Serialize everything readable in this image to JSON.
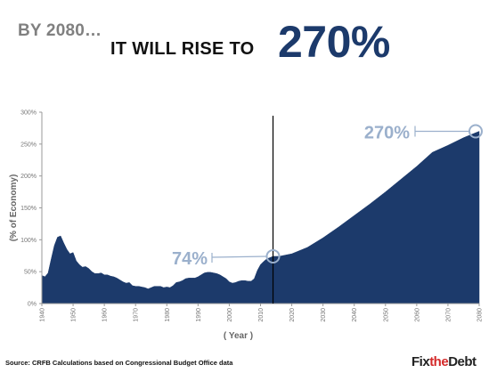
{
  "header": {
    "kicker": "BY 2080…",
    "headline": "IT WILL RISE TO",
    "big_value": "270%"
  },
  "footer": {
    "source": "Source: CRFB Calculations based on Congressional Budget Office data",
    "logo_part1": "Fix",
    "logo_part2": "the",
    "logo_part3": "Debt"
  },
  "colors": {
    "area": "#1c3a6b",
    "callout": "#9bb0cc",
    "axis_text": "#777777",
    "accent": "#d42a2a"
  },
  "chart_data": {
    "type": "area",
    "title": "",
    "xlabel": "( Year )",
    "ylabel": "(% of Economy)",
    "xlim": [
      1940,
      2080
    ],
    "ylim": [
      0,
      300
    ],
    "yticks": [
      0,
      50,
      100,
      150,
      200,
      250,
      300
    ],
    "ytick_labels": [
      "0%",
      "50%",
      "100%",
      "150%",
      "200%",
      "250%",
      "300%"
    ],
    "xticks": [
      1940,
      1950,
      1960,
      1970,
      1980,
      1990,
      2000,
      2010,
      2020,
      2030,
      2040,
      2050,
      2060,
      2070,
      2080
    ],
    "xtick_labels": [
      "1940",
      "1950",
      "1960",
      "1970",
      "1980",
      "1990",
      "2000",
      "2010",
      "2020",
      "2030",
      "2040",
      "2050",
      "2060",
      "2070",
      "2080"
    ],
    "grid": false,
    "divider_year": 2014,
    "series": [
      {
        "x": [
          1940,
          1941,
          1942,
          1943,
          1944,
          1945,
          1946,
          1947,
          1948,
          1949,
          1950,
          1951,
          1952,
          1953,
          1954,
          1955,
          1956,
          1957,
          1958,
          1959,
          1960,
          1961,
          1962,
          1963,
          1964,
          1965,
          1966,
          1967,
          1968,
          1969,
          1970,
          1971,
          1972,
          1973,
          1974,
          1975,
          1976,
          1977,
          1978,
          1979,
          1980,
          1981,
          1982,
          1983,
          1984,
          1985,
          1986,
          1987,
          1988,
          1989,
          1990,
          1991,
          1992,
          1993,
          1994,
          1995,
          1996,
          1997,
          1998,
          1999,
          2000,
          2001,
          2002,
          2003,
          2004,
          2005,
          2006,
          2007,
          2008,
          2009,
          2010,
          2011,
          2012,
          2013,
          2014,
          2016,
          2018,
          2020,
          2022,
          2025,
          2030,
          2035,
          2040,
          2045,
          2050,
          2055,
          2060,
          2065,
          2070,
          2075,
          2080
        ],
        "values": [
          44,
          42,
          48,
          70,
          91,
          104,
          106,
          95,
          85,
          78,
          80,
          67,
          61,
          57,
          58,
          55,
          50,
          47,
          47,
          48,
          45,
          45,
          43,
          42,
          40,
          37,
          34,
          32,
          33,
          28,
          27,
          27,
          26,
          25,
          23,
          25,
          27,
          27,
          27,
          25,
          26,
          25,
          28,
          33,
          34,
          36,
          39,
          40,
          40,
          40,
          42,
          45,
          48,
          49,
          49,
          48,
          47,
          45,
          42,
          39,
          34,
          32,
          33,
          35,
          36,
          36,
          35,
          35,
          39,
          52,
          61,
          66,
          70,
          72,
          74,
          74,
          76,
          78,
          82,
          88,
          103,
          120,
          138,
          156,
          175,
          195,
          215,
          237,
          248,
          260,
          270
        ]
      }
    ],
    "annotations": [
      {
        "label": "74%",
        "x": 2014,
        "y": 74
      },
      {
        "label": "270%",
        "x": 2080,
        "y": 270
      }
    ]
  }
}
